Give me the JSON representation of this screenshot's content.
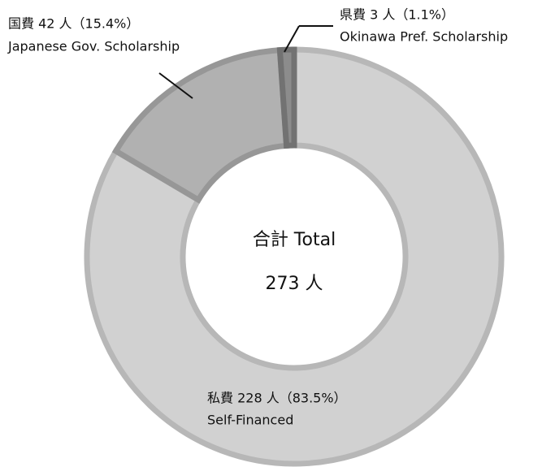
{
  "chart_data": {
    "type": "pie",
    "categories": [
      "Self-Financed",
      "Japanese Gov. Scholarship",
      "Okinawa Pref. Scholarship"
    ],
    "values": [
      228,
      42,
      3
    ],
    "value_labels": [
      "私費 228 人（83.5%）",
      "国費 42 人（15.4%）",
      "県費 3 人（1.1%）"
    ],
    "colors": [
      "#d1d1d1",
      "#b1b1b1",
      "#8c8c8c"
    ],
    "center_text": [
      "合計 Total",
      "273 人"
    ]
  }
}
